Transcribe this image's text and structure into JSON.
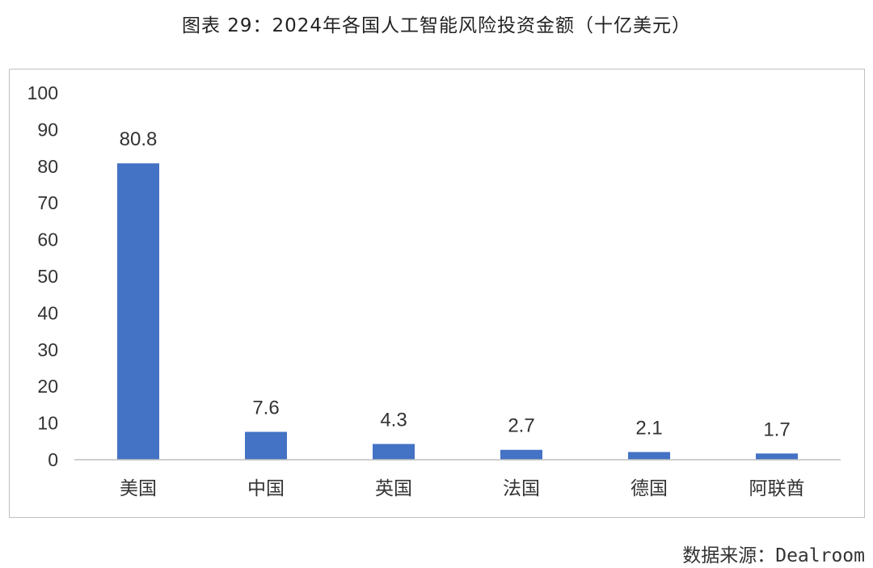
{
  "title": "图表 29：2024年各国人工智能风险投资金额（十亿美元）",
  "source": "数据来源：Dealroom",
  "chart_data": {
    "type": "bar",
    "categories": [
      "美国",
      "中国",
      "英国",
      "法国",
      "德国",
      "阿联酋"
    ],
    "values": [
      80.8,
      7.6,
      4.3,
      2.7,
      2.1,
      1.7
    ],
    "data_labels": [
      "80.8",
      "7.6",
      "4.3",
      "2.7",
      "2.1",
      "1.7"
    ],
    "ylim": [
      0,
      100
    ],
    "yticks": [
      0,
      10,
      20,
      30,
      40,
      50,
      60,
      70,
      80,
      90,
      100
    ],
    "grid": false,
    "legend": "none",
    "bar_color": "#4472C4",
    "axis_color": "#bfbfbf"
  }
}
